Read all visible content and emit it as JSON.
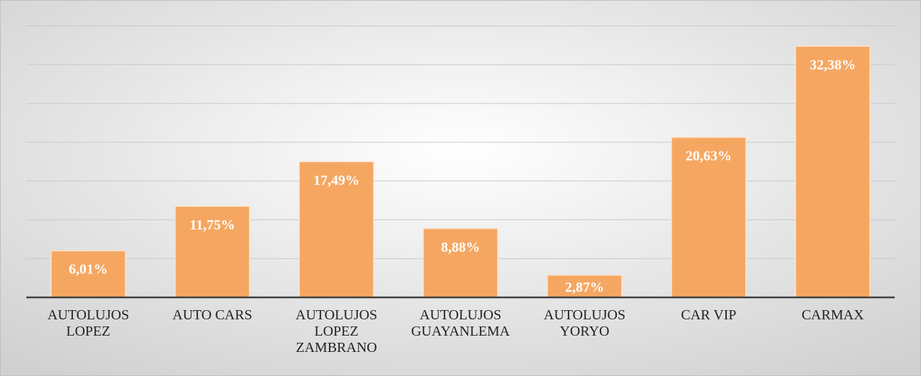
{
  "chart_data": {
    "type": "bar",
    "categories": [
      "AUTOLUJOS\nLOPEZ",
      "AUTO CARS",
      "AUTOLUJOS\nLOPEZ\nZAMBRANO",
      "AUTOLUJOS\nGUAYANLEMA",
      "AUTOLUJOS\nYORYO",
      "CAR VIP",
      "CARMAX"
    ],
    "values": [
      6.01,
      11.75,
      17.49,
      8.88,
      2.87,
      20.63,
      32.38
    ],
    "value_labels": [
      "6,01%",
      "11,75%",
      "17,49%",
      "8,88%",
      "2,87%",
      "20,63%",
      "32,38%"
    ],
    "color": "#f5a762",
    "ylim": [
      0,
      35
    ],
    "yticks": [
      0,
      5,
      10,
      15,
      20,
      25,
      30,
      35
    ],
    "grid": true
  }
}
